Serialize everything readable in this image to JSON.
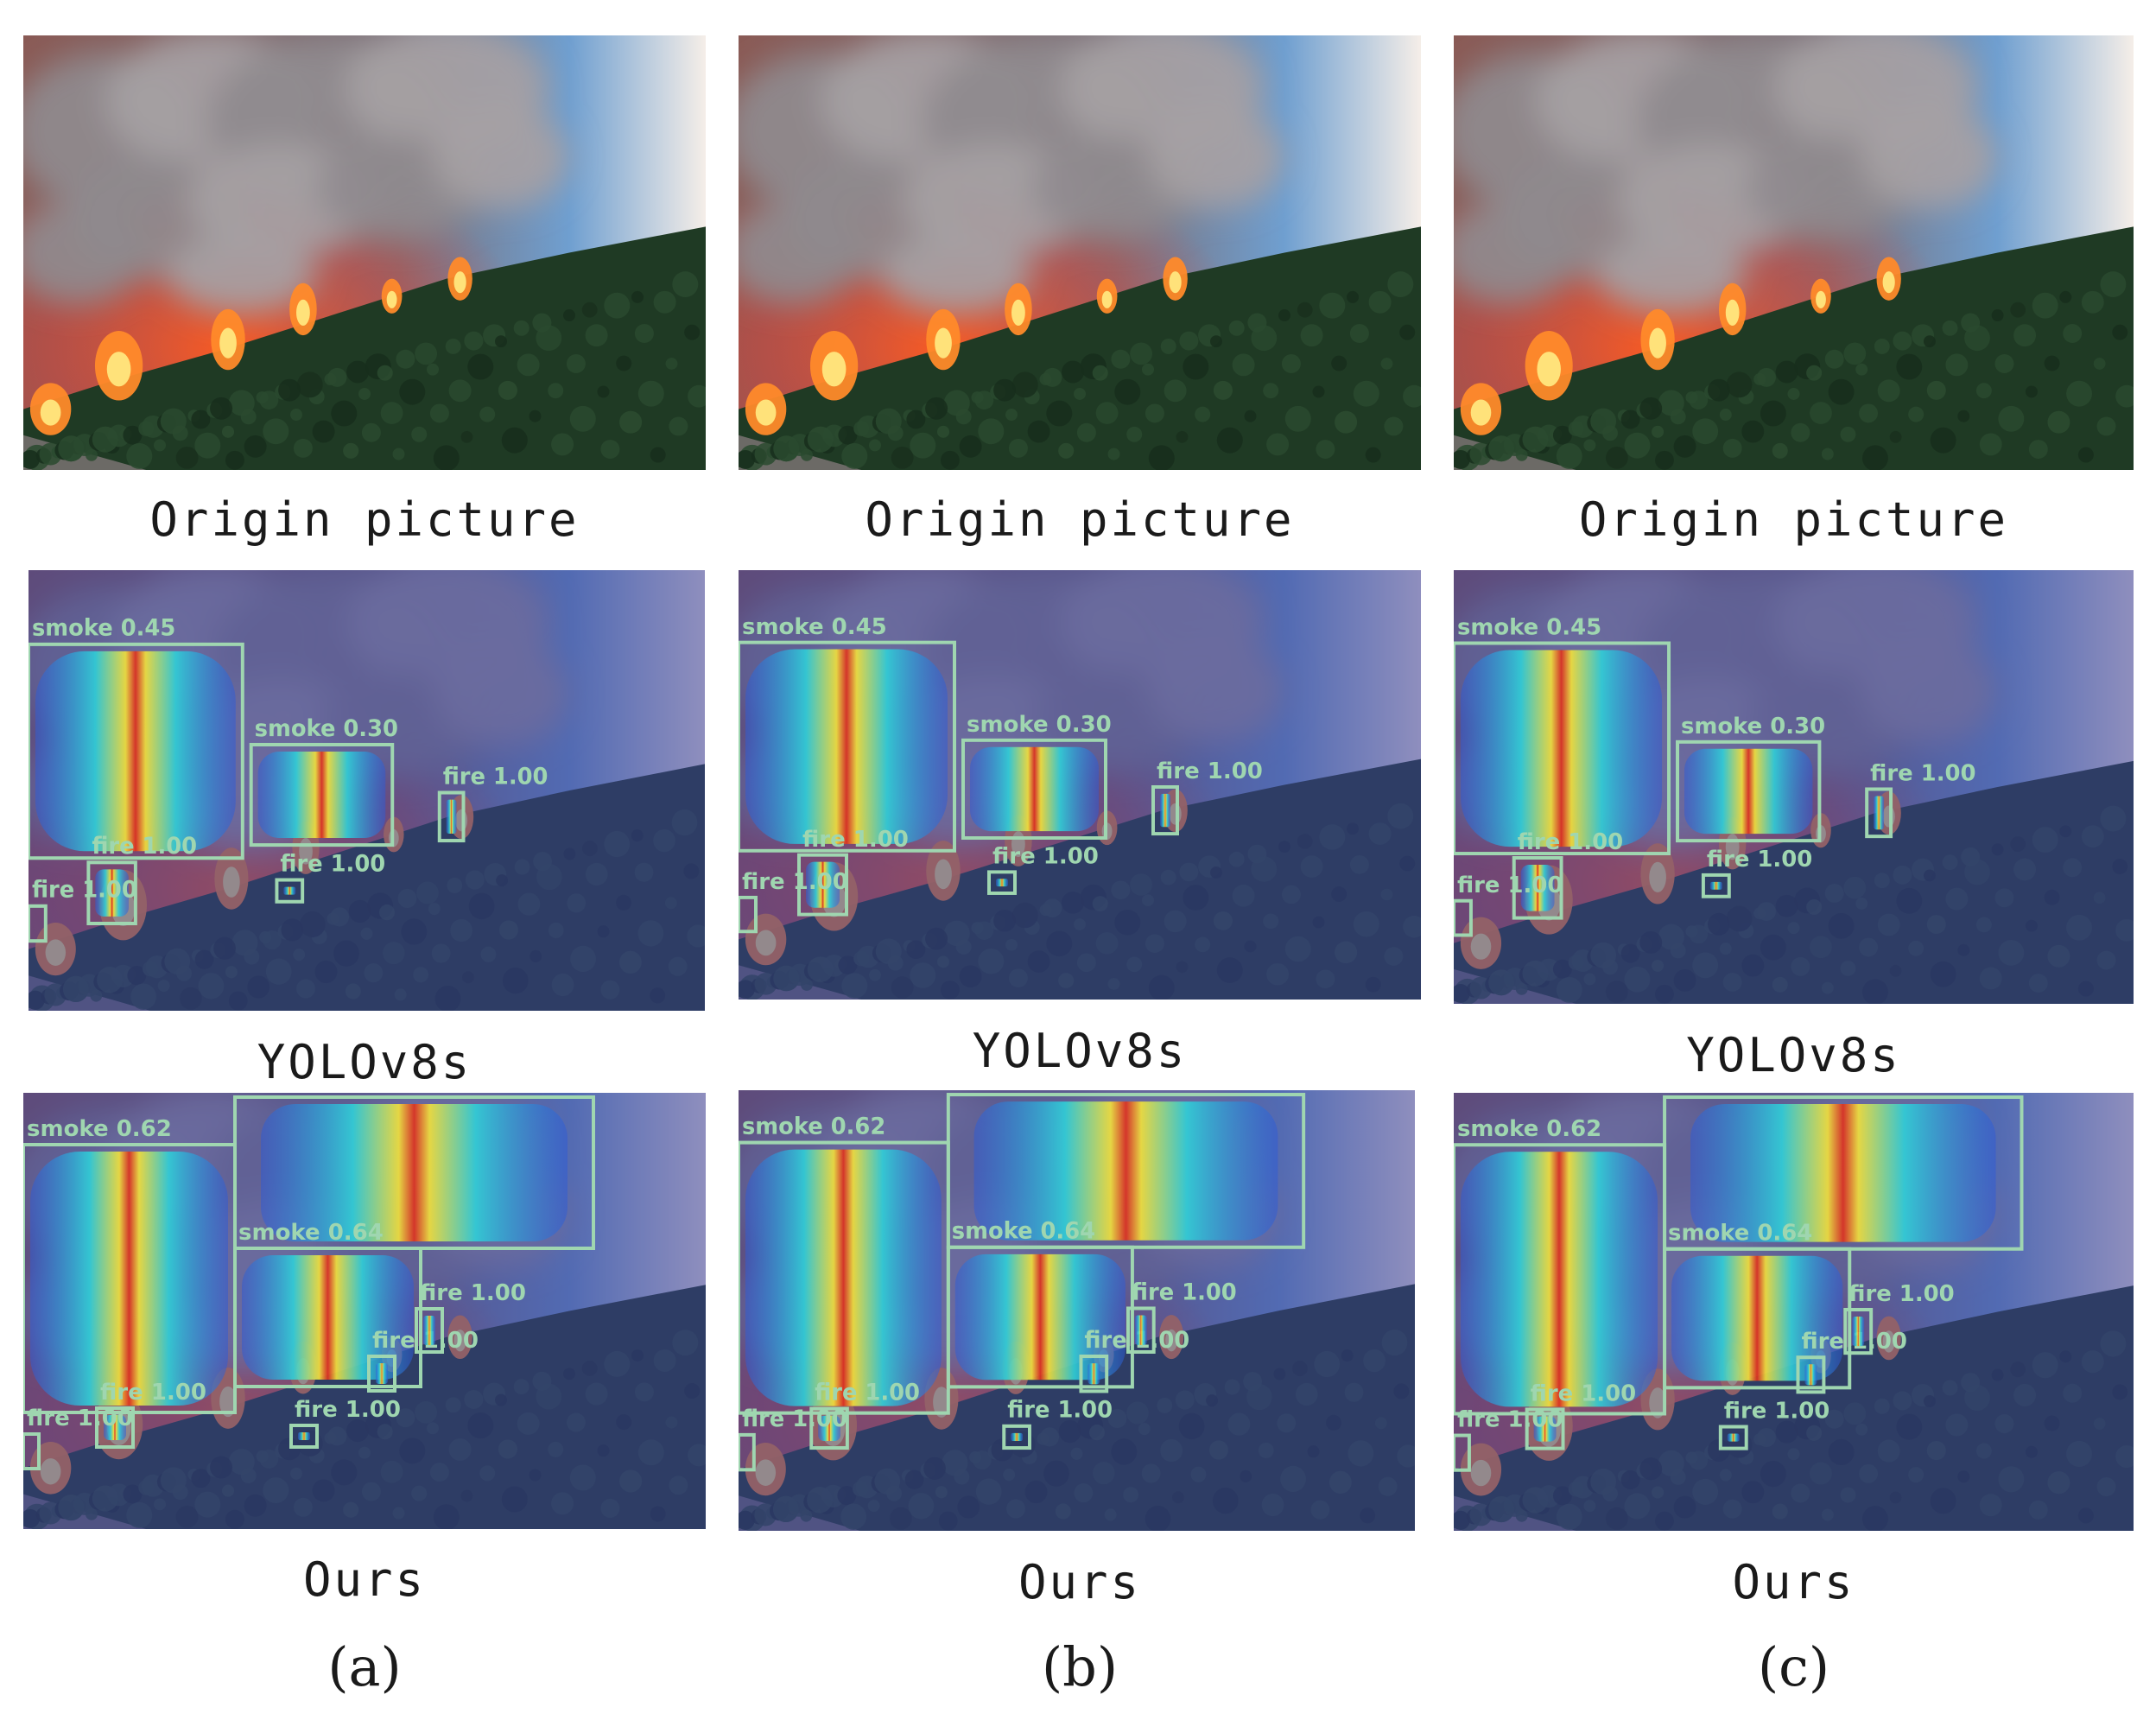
{
  "columns": [
    {
      "id": "a",
      "sublabel": "(a)",
      "rows": [
        {
          "caption": "Origin picture"
        },
        {
          "caption": "YOLOv8s",
          "detections": [
            {
              "label": "smoke 0.45"
            },
            {
              "label": "smoke 0.30"
            },
            {
              "label": "fire 1.00"
            },
            {
              "label": "fire 1.00"
            },
            {
              "label": "fire 1.00"
            },
            {
              "label": "fire 1.00"
            }
          ]
        },
        {
          "caption": "Ours",
          "detections": [
            {
              "label": "smoke 0.62"
            },
            {
              "label": "smoke 0.64"
            },
            {
              "label": "fire 1.00"
            },
            {
              "label": "fire 1.00"
            },
            {
              "label": "fire 1.00"
            },
            {
              "label": "fire 1.00"
            },
            {
              "label": "fire 1.00"
            }
          ]
        }
      ]
    },
    {
      "id": "b",
      "sublabel": "(b)",
      "rows": [
        {
          "caption": "Origin picture"
        },
        {
          "caption": "YOLOv8s",
          "detections": [
            {
              "label": "smoke 0.45"
            },
            {
              "label": "smoke 0.30"
            },
            {
              "label": "fire 1.00"
            },
            {
              "label": "fire 1.00"
            },
            {
              "label": "fire 1.00"
            },
            {
              "label": "fire 1.00"
            }
          ]
        },
        {
          "caption": "Ours",
          "detections": [
            {
              "label": "smoke 0.62"
            },
            {
              "label": "smoke 0.64"
            },
            {
              "label": "fire 1.00"
            },
            {
              "label": "fire 1.00"
            },
            {
              "label": "fire 1.00"
            },
            {
              "label": "fire 1.00"
            },
            {
              "label": "fire 1.00"
            }
          ]
        }
      ]
    },
    {
      "id": "c",
      "sublabel": "(c)",
      "rows": [
        {
          "caption": "Origin picture"
        },
        {
          "caption": "YOLOv8s",
          "detections": [
            {
              "label": "smoke 0.45"
            },
            {
              "label": "smoke 0.30"
            },
            {
              "label": "fire 1.00"
            },
            {
              "label": "fire 1.00"
            },
            {
              "label": "fire 1.00"
            },
            {
              "label": "fire 1.00"
            }
          ]
        },
        {
          "caption": "Ours",
          "detections": [
            {
              "label": "smoke 0.62"
            },
            {
              "label": "smoke 0.64"
            },
            {
              "label": "fire 1.00"
            },
            {
              "label": "fire 1.00"
            },
            {
              "label": "fire 1.00"
            },
            {
              "label": "fire 1.00"
            },
            {
              "label": "fire 1.00"
            }
          ]
        }
      ]
    }
  ],
  "colors": {
    "box_stroke": "#9fd6b0",
    "overlay_tint": "#3b3f9a",
    "fire": "#ff5a1f",
    "smoke": "#8f8a8e",
    "forest": "#1f3a24",
    "sky": "#6f9fd0"
  }
}
